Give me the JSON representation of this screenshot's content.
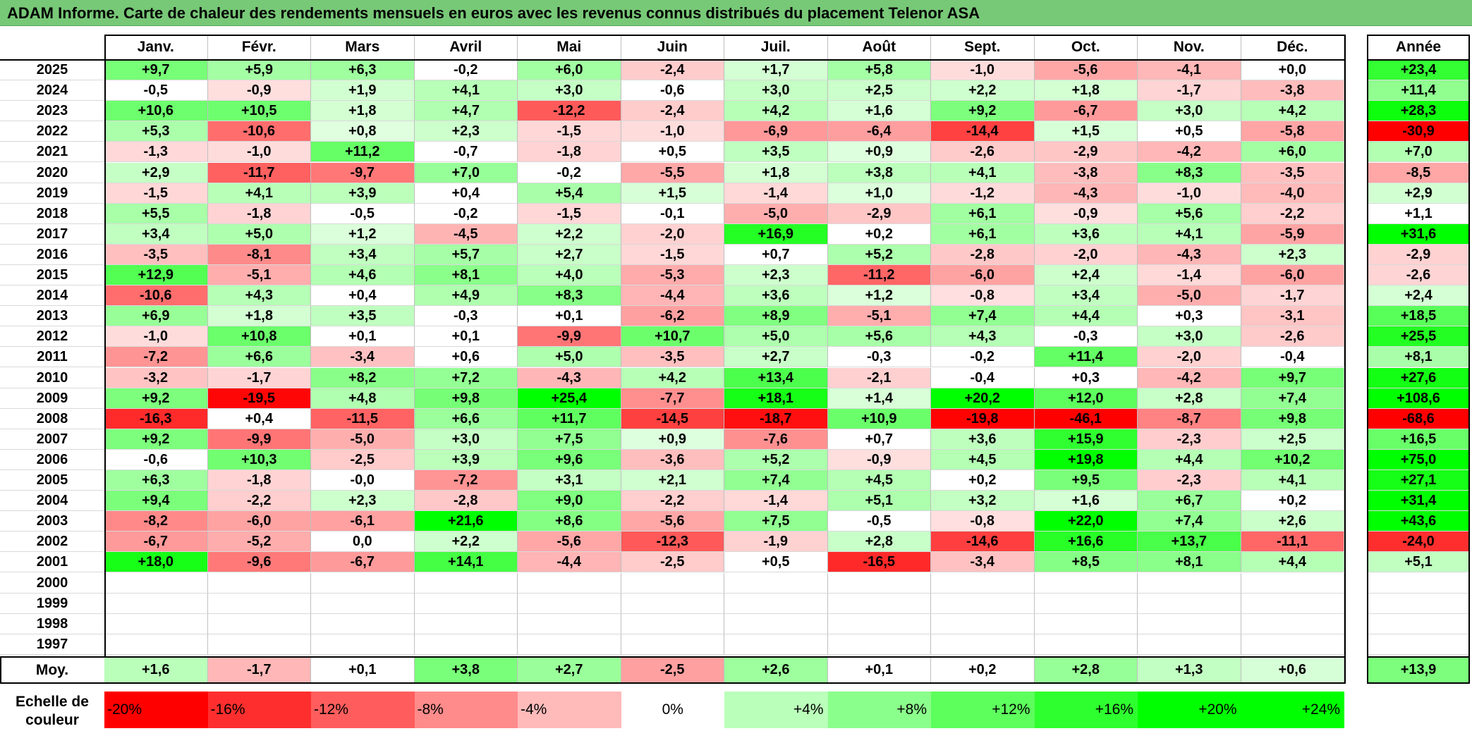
{
  "title": "ADAM Informe. Carte de chaleur des rendements mensuels en euros avec les revenus connus distribués du placement Telenor ASA",
  "chart_data": {
    "type": "heatmap",
    "title": "ADAM Informe. Carte de chaleur des rendements mensuels en euros avec les revenus connus distribués du placement Telenor ASA",
    "columns": [
      "Janv.",
      "Févr.",
      "Mars",
      "Avril",
      "Mai",
      "Juin",
      "Juil.",
      "Août",
      "Sept.",
      "Oct.",
      "Nov.",
      "Déc."
    ],
    "year_column_label": "Année",
    "rows": [
      {
        "year": "2025",
        "values": [
          "+9,7",
          "+5,9",
          "+6,3",
          "-0,2",
          "+6,0",
          "-2,4",
          "+1,7",
          "+5,8",
          "-1,0",
          "-5,6",
          "-4,1",
          "+0,0"
        ],
        "annual": "+23,4"
      },
      {
        "year": "2024",
        "values": [
          "-0,5",
          "-0,9",
          "+1,9",
          "+4,1",
          "+3,0",
          "-0,6",
          "+3,0",
          "+2,5",
          "+2,2",
          "+1,8",
          "-1,7",
          "-3,8"
        ],
        "annual": "+11,4"
      },
      {
        "year": "2023",
        "values": [
          "+10,6",
          "+10,5",
          "+1,8",
          "+4,7",
          "-12,2",
          "-2,4",
          "+4,2",
          "+1,6",
          "+9,2",
          "-6,7",
          "+3,0",
          "+4,2"
        ],
        "annual": "+28,3"
      },
      {
        "year": "2022",
        "values": [
          "+5,3",
          "-10,6",
          "+0,8",
          "+2,3",
          "-1,5",
          "-1,0",
          "-6,9",
          "-6,4",
          "-14,4",
          "+1,5",
          "+0,5",
          "-5,8"
        ],
        "annual": "-30,9"
      },
      {
        "year": "2021",
        "values": [
          "-1,3",
          "-1,0",
          "+11,2",
          "-0,7",
          "-1,8",
          "+0,5",
          "+3,5",
          "+0,9",
          "-2,6",
          "-2,9",
          "-4,2",
          "+6,0"
        ],
        "annual": "+7,0"
      },
      {
        "year": "2020",
        "values": [
          "+2,9",
          "-11,7",
          "-9,7",
          "+7,0",
          "-0,2",
          "-5,5",
          "+1,8",
          "+3,8",
          "+4,1",
          "-3,8",
          "+8,3",
          "-3,5"
        ],
        "annual": "-8,5"
      },
      {
        "year": "2019",
        "values": [
          "-1,5",
          "+4,1",
          "+3,9",
          "+0,4",
          "+5,4",
          "+1,5",
          "-1,4",
          "+1,0",
          "-1,2",
          "-4,3",
          "-1,0",
          "-4,0"
        ],
        "annual": "+2,9"
      },
      {
        "year": "2018",
        "values": [
          "+5,5",
          "-1,8",
          "-0,5",
          "-0,2",
          "-1,5",
          "-0,1",
          "-5,0",
          "-2,9",
          "+6,1",
          "-0,9",
          "+5,6",
          "-2,2"
        ],
        "annual": "+1,1"
      },
      {
        "year": "2017",
        "values": [
          "+3,4",
          "+5,0",
          "+1,2",
          "-4,5",
          "+2,2",
          "-2,0",
          "+16,9",
          "+0,2",
          "+6,1",
          "+3,6",
          "+4,1",
          "-5,9"
        ],
        "annual": "+31,6"
      },
      {
        "year": "2016",
        "values": [
          "-3,5",
          "-8,1",
          "+3,4",
          "+5,7",
          "+2,7",
          "-1,5",
          "+0,7",
          "+5,2",
          "-2,8",
          "-2,0",
          "-4,3",
          "+2,3"
        ],
        "annual": "-2,9"
      },
      {
        "year": "2015",
        "values": [
          "+12,9",
          "-5,1",
          "+4,6",
          "+8,1",
          "+4,0",
          "-5,3",
          "+2,3",
          "-11,2",
          "-6,0",
          "+2,4",
          "-1,4",
          "-6,0"
        ],
        "annual": "-2,6"
      },
      {
        "year": "2014",
        "values": [
          "-10,6",
          "+4,3",
          "+0,4",
          "+4,9",
          "+8,3",
          "-4,4",
          "+3,6",
          "+1,2",
          "-0,8",
          "+3,4",
          "-5,0",
          "-1,7"
        ],
        "annual": "+2,4"
      },
      {
        "year": "2013",
        "values": [
          "+6,9",
          "+1,8",
          "+3,5",
          "-0,3",
          "+0,1",
          "-6,2",
          "+8,9",
          "-5,1",
          "+7,4",
          "+4,4",
          "+0,3",
          "-3,1"
        ],
        "annual": "+18,5"
      },
      {
        "year": "2012",
        "values": [
          "-1,0",
          "+10,8",
          "+0,1",
          "+0,1",
          "-9,9",
          "+10,7",
          "+5,0",
          "+5,6",
          "+4,3",
          "-0,3",
          "+3,0",
          "-2,6"
        ],
        "annual": "+25,5"
      },
      {
        "year": "2011",
        "values": [
          "-7,2",
          "+6,6",
          "-3,4",
          "+0,6",
          "+5,0",
          "-3,5",
          "+2,7",
          "-0,3",
          "-0,2",
          "+11,4",
          "-2,0",
          "-0,4"
        ],
        "annual": "+8,1"
      },
      {
        "year": "2010",
        "values": [
          "-3,2",
          "-1,7",
          "+8,2",
          "+7,2",
          "-4,3",
          "+4,2",
          "+13,4",
          "-2,1",
          "-0,4",
          "+0,3",
          "-4,2",
          "+9,7"
        ],
        "annual": "+27,6"
      },
      {
        "year": "2009",
        "values": [
          "+9,2",
          "-19,5",
          "+4,8",
          "+9,8",
          "+25,4",
          "-7,7",
          "+18,1",
          "+1,4",
          "+20,2",
          "+12,0",
          "+2,8",
          "+7,4"
        ],
        "annual": "+108,6"
      },
      {
        "year": "2008",
        "values": [
          "-16,3",
          "+0,4",
          "-11,5",
          "+6,6",
          "+11,7",
          "-14,5",
          "-18,7",
          "+10,9",
          "-19,8",
          "-46,1",
          "-8,7",
          "+9,8"
        ],
        "annual": "-68,6"
      },
      {
        "year": "2007",
        "values": [
          "+9,2",
          "-9,9",
          "-5,0",
          "+3,0",
          "+7,5",
          "+0,9",
          "-7,6",
          "+0,7",
          "+3,6",
          "+15,9",
          "-2,3",
          "+2,5"
        ],
        "annual": "+16,5"
      },
      {
        "year": "2006",
        "values": [
          "-0,6",
          "+10,3",
          "-2,5",
          "+3,9",
          "+9,6",
          "-3,6",
          "+5,2",
          "-0,9",
          "+4,5",
          "+19,8",
          "+4,4",
          "+10,2"
        ],
        "annual": "+75,0"
      },
      {
        "year": "2005",
        "values": [
          "+6,3",
          "-1,8",
          "-0,0",
          "-7,2",
          "+3,1",
          "+2,1",
          "+7,4",
          "+4,5",
          "+0,2",
          "+9,5",
          "-2,3",
          "+4,1"
        ],
        "annual": "+27,1"
      },
      {
        "year": "2004",
        "values": [
          "+9,4",
          "-2,2",
          "+2,3",
          "-2,8",
          "+9,0",
          "-2,2",
          "-1,4",
          "+5,1",
          "+3,2",
          "+1,6",
          "+6,7",
          "+0,2"
        ],
        "annual": "+31,4"
      },
      {
        "year": "2003",
        "values": [
          "-8,2",
          "-6,0",
          "-6,1",
          "+21,6",
          "+8,6",
          "-5,6",
          "+7,5",
          "-0,5",
          "-0,8",
          "+22,0",
          "+7,4",
          "+2,6"
        ],
        "annual": "+43,6"
      },
      {
        "year": "2002",
        "values": [
          "-6,7",
          "-5,2",
          "0,0",
          "+2,2",
          "-5,6",
          "-12,3",
          "-1,9",
          "+2,8",
          "-14,6",
          "+16,6",
          "+13,7",
          "-11,1"
        ],
        "annual": "-24,0"
      },
      {
        "year": "2001",
        "values": [
          "+18,0",
          "-9,6",
          "-6,7",
          "+14,1",
          "-4,4",
          "-2,5",
          "+0,5",
          "-16,5",
          "-3,4",
          "+8,5",
          "+8,1",
          "+4,4"
        ],
        "annual": "+5,1"
      },
      {
        "year": "2000",
        "values": [
          "",
          "",
          "",
          "",
          "",
          "",
          "",
          "",
          "",
          "",
          "",
          ""
        ],
        "annual": ""
      },
      {
        "year": "1999",
        "values": [
          "",
          "",
          "",
          "",
          "",
          "",
          "",
          "",
          "",
          "",
          "",
          ""
        ],
        "annual": ""
      },
      {
        "year": "1998",
        "values": [
          "",
          "",
          "",
          "",
          "",
          "",
          "",
          "",
          "",
          "",
          "",
          ""
        ],
        "annual": ""
      },
      {
        "year": "1997",
        "values": [
          "",
          "",
          "",
          "",
          "",
          "",
          "",
          "",
          "",
          "",
          "",
          ""
        ],
        "annual": ""
      }
    ],
    "average": {
      "label": "Moy.",
      "values": [
        "+1,6",
        "-1,7",
        "+0,1",
        "+3,8",
        "+2,7",
        "-2,5",
        "+2,6",
        "+0,1",
        "+0,2",
        "+2,8",
        "+1,3",
        "+0,6"
      ],
      "annual": "+13,9"
    },
    "color_scale": {
      "label": "Echelle de couleur",
      "stops": [
        "-20%",
        "-16%",
        "-12%",
        "-8%",
        "-4%",
        "0%",
        "+4%",
        "+8%",
        "+12%",
        "+16%",
        "+20%",
        "+24%"
      ],
      "negative_color": "#ff0000",
      "neutral_color": "#ffffff",
      "positive_color": "#00ff00"
    }
  }
}
